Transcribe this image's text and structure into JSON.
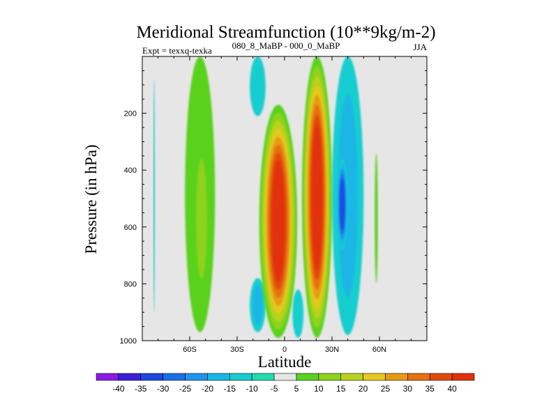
{
  "chart_data": {
    "type": "heatmap",
    "title": "Meridional Streamfunction (10**9kg/m-2)",
    "subtitle_left": "Expt = texxq-texka",
    "subtitle_center": "080_8_MaBP - 000_0_MaBP",
    "subtitle_right": "JJA",
    "xlabel": "Latitude",
    "ylabel": "Pressure (in hPa)",
    "xlim": [
      -90,
      90
    ],
    "ylim": [
      1000,
      0
    ],
    "x_ticks": [
      {
        "value": -60,
        "label": "60S"
      },
      {
        "value": -30,
        "label": "30S"
      },
      {
        "value": 0,
        "label": "0"
      },
      {
        "value": 30,
        "label": "30N"
      },
      {
        "value": 60,
        "label": "60N"
      }
    ],
    "y_ticks": [
      {
        "value": 200,
        "label": "200"
      },
      {
        "value": 400,
        "label": "400"
      },
      {
        "value": 600,
        "label": "600"
      },
      {
        "value": 800,
        "label": "800"
      },
      {
        "value": 1000,
        "label": "1000"
      }
    ],
    "background": "#e6e6e6",
    "colorbar": {
      "labels": [
        "-40",
        "-35",
        "-30",
        "-25",
        "-20",
        "-15",
        "-10",
        "-5",
        "5",
        "10",
        "15",
        "20",
        "25",
        "30",
        "35",
        "40"
      ],
      "colors": [
        "#8a19e6",
        "#3a1fd6",
        "#1d48e0",
        "#1a70e6",
        "#1e96ea",
        "#1ab6e6",
        "#18cdd0",
        "#22dcb0",
        "#e6e6e6",
        "#5ad21e",
        "#8ed21e",
        "#b9d21e",
        "#e6c81e",
        "#e69a14",
        "#e6700f",
        "#e14a0c",
        "#e1320a"
      ]
    },
    "features": [
      {
        "name": "negative band far south",
        "lat": [
          -83,
          -82
        ],
        "p": [
          80,
          900
        ],
        "value": -6
      },
      {
        "name": "southern ferrel cell",
        "lat": [
          -63,
          -44
        ],
        "p": [
          0,
          970
        ],
        "value": 8
      },
      {
        "name": "southern ferrel core",
        "lat": [
          -58,
          -47
        ],
        "p": [
          280,
          860
        ],
        "value": 12
      },
      {
        "name": "upper negative near 20S",
        "lat": [
          -22,
          -12
        ],
        "p": [
          0,
          210
        ],
        "value": -8
      },
      {
        "name": "lower negative near 20S",
        "lat": [
          -22,
          -12
        ],
        "p": [
          780,
          970
        ],
        "value": -10
      },
      {
        "name": "southern hadley cell",
        "lat": [
          -16,
          8
        ],
        "p": [
          170,
          990
        ],
        "value": 40
      },
      {
        "name": "equatorial negative",
        "lat": [
          5,
          12
        ],
        "p": [
          820,
          990
        ],
        "value": -8
      },
      {
        "name": "northern hadley cell",
        "lat": [
          11,
          30
        ],
        "p": [
          0,
          990
        ],
        "value": 40
      },
      {
        "name": "northern negative band",
        "lat": [
          30,
          50
        ],
        "p": [
          0,
          980
        ],
        "value": -14
      },
      {
        "name": "northern negative core",
        "lat": [
          33,
          40
        ],
        "p": [
          360,
          680
        ],
        "value": -25
      },
      {
        "name": "small positive near 60N",
        "lat": [
          57,
          59
        ],
        "p": [
          340,
          800
        ],
        "value": 8
      }
    ]
  }
}
